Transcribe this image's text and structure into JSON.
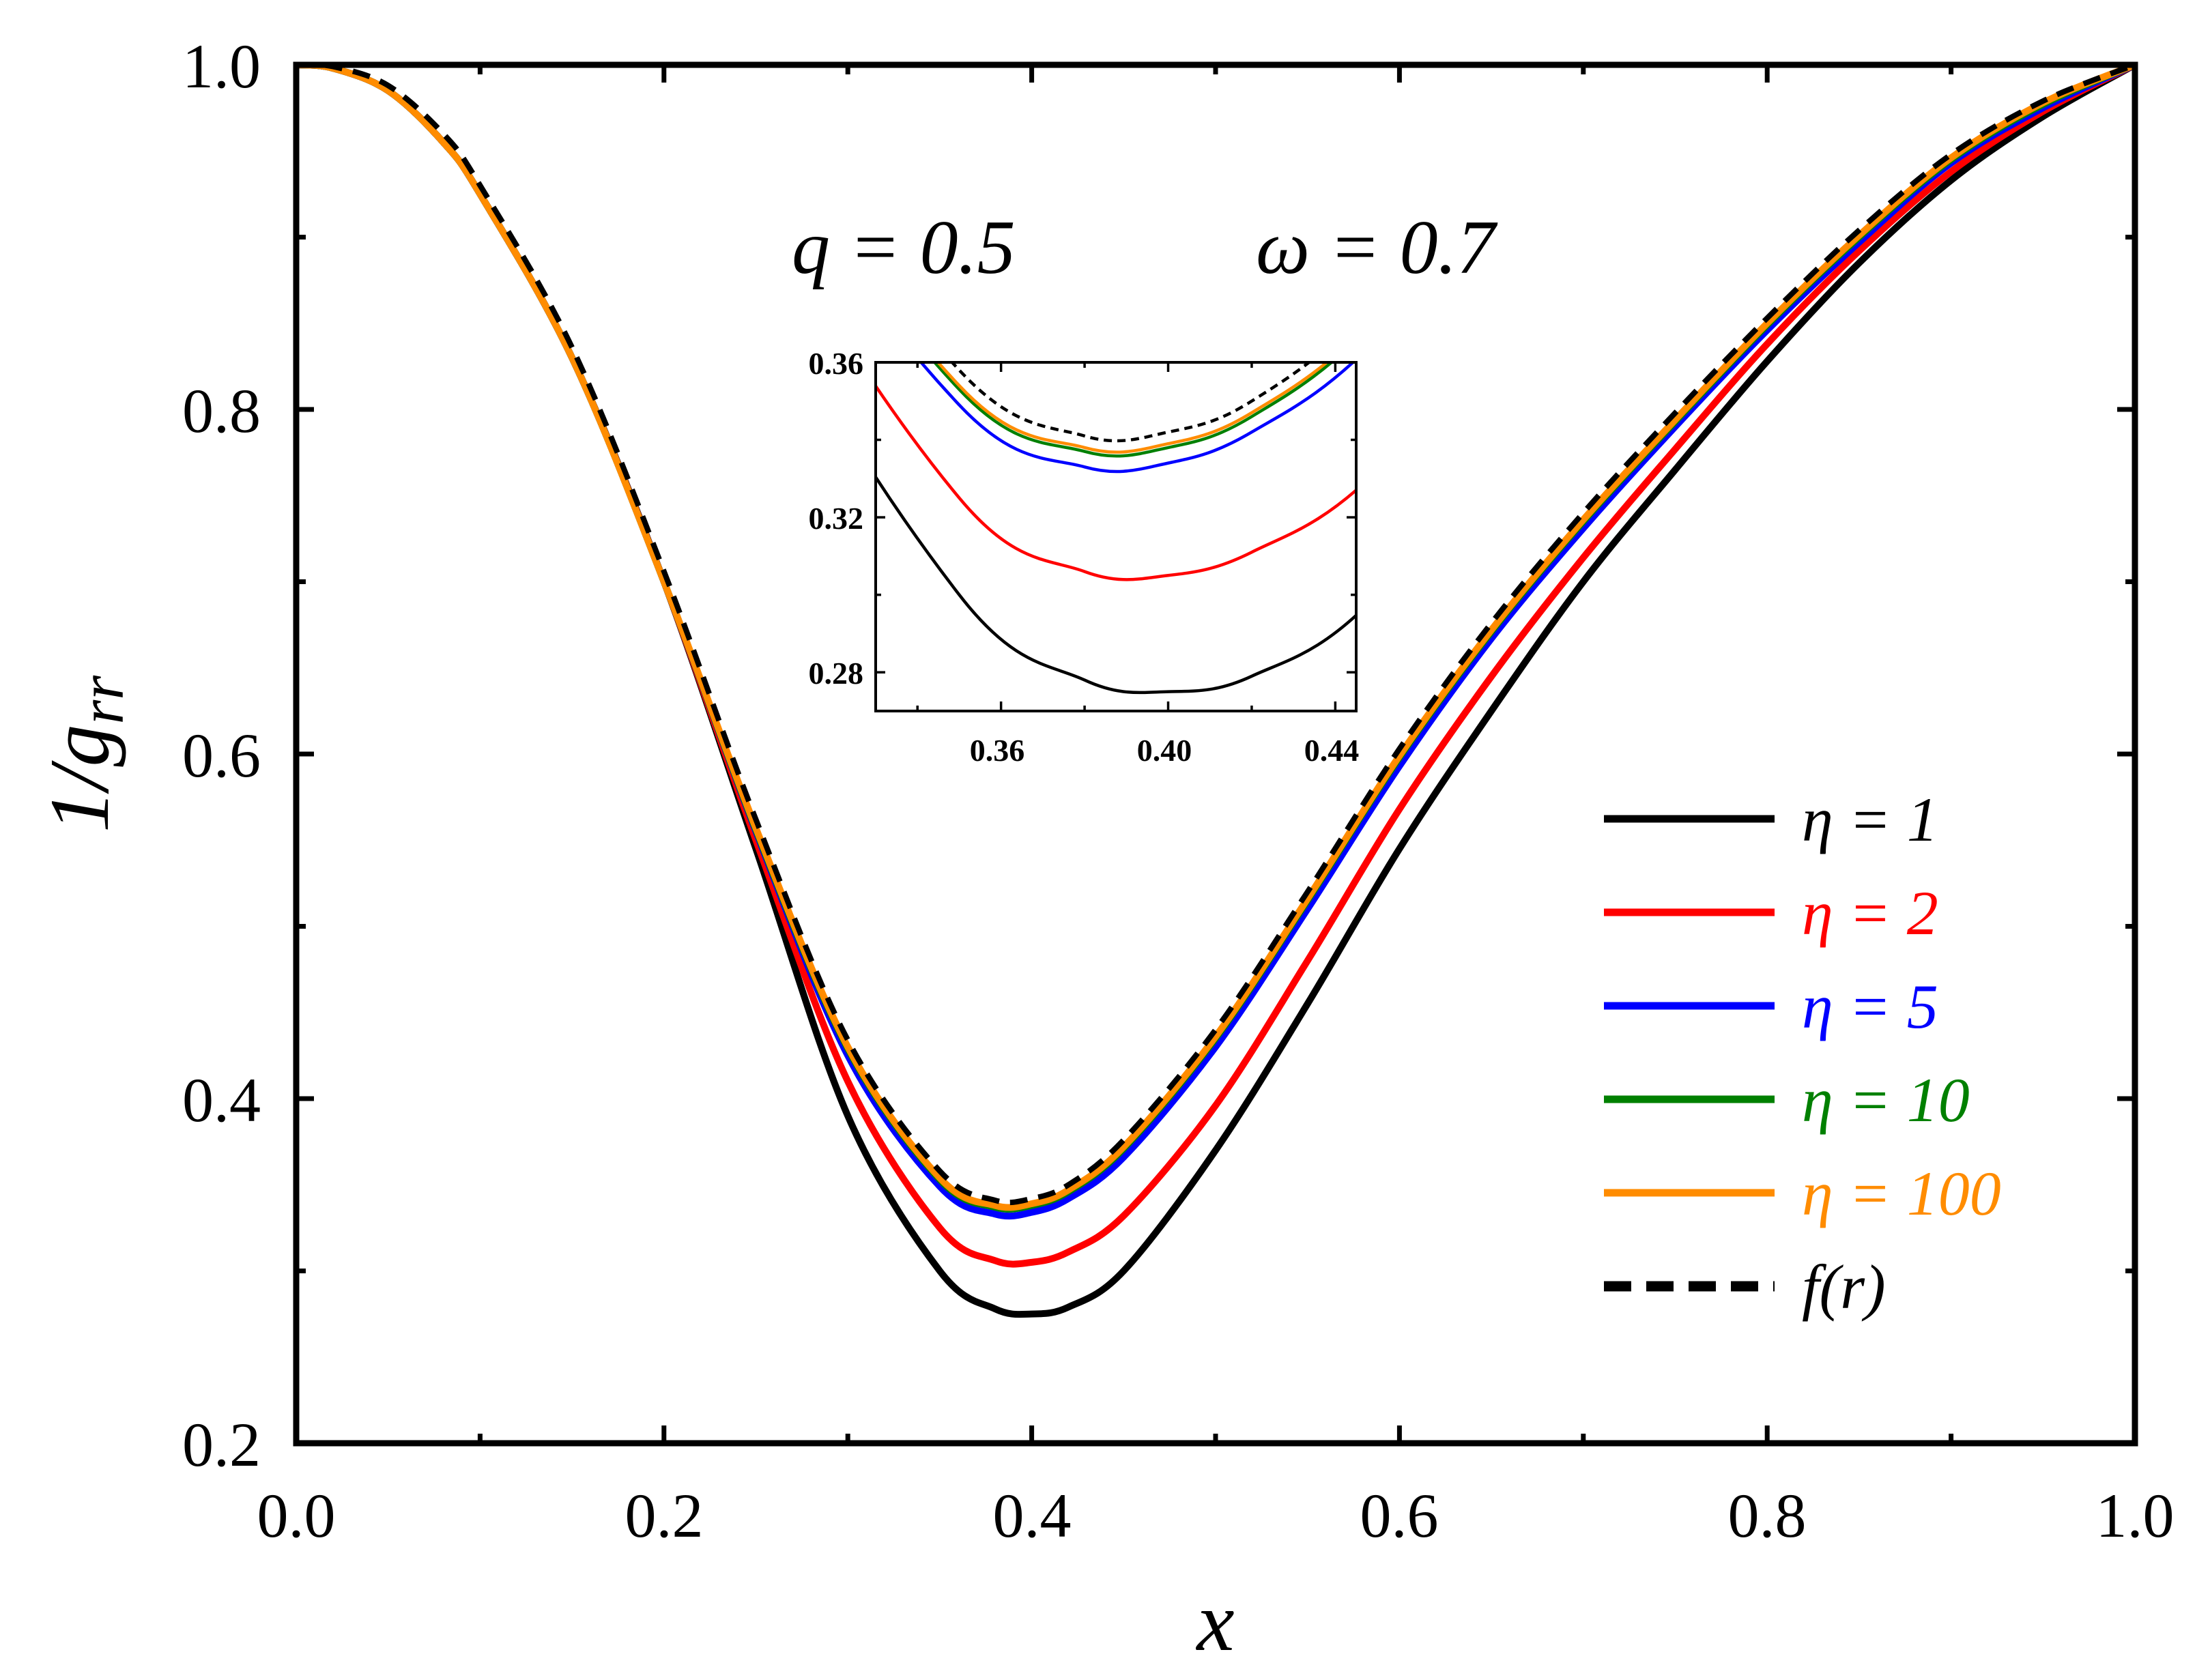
{
  "chart_data": {
    "type": "line",
    "title": "",
    "xlabel": "x",
    "ylabel_main": "1/g",
    "ylabel_sub": "rr",
    "xlim": [
      0.0,
      1.0
    ],
    "ylim": [
      0.2,
      1.0
    ],
    "x_ticks": [
      "0.0",
      "0.2",
      "0.4",
      "0.6",
      "0.8",
      "1.0"
    ],
    "y_ticks": [
      "0.2",
      "0.4",
      "0.6",
      "0.8",
      "1.0"
    ],
    "annotations": [
      {
        "id": "q",
        "text": "q = 0.5"
      },
      {
        "id": "omega",
        "text": "ω = 0.7"
      }
    ],
    "x": [
      0.0,
      0.02,
      0.05,
      0.08,
      0.1,
      0.15,
      0.2,
      0.25,
      0.3,
      0.35,
      0.38,
      0.4,
      0.42,
      0.45,
      0.5,
      0.55,
      0.6,
      0.65,
      0.7,
      0.75,
      0.8,
      0.85,
      0.9,
      0.95,
      1.0
    ],
    "series": [
      {
        "name": "η = 1",
        "color": "#000000",
        "dash": "solid",
        "values": [
          1.0,
          0.998,
          0.985,
          0.955,
          0.925,
          0.83,
          0.7,
          0.545,
          0.39,
          0.3,
          0.278,
          0.275,
          0.279,
          0.3,
          0.37,
          0.455,
          0.545,
          0.625,
          0.7,
          0.765,
          0.828,
          0.885,
          0.933,
          0.97,
          1.0
        ]
      },
      {
        "name": "η = 2",
        "color": "#ff0000",
        "dash": "solid",
        "values": [
          1.0,
          0.998,
          0.985,
          0.955,
          0.925,
          0.83,
          0.7,
          0.55,
          0.41,
          0.325,
          0.306,
          0.305,
          0.311,
          0.332,
          0.396,
          0.48,
          0.568,
          0.645,
          0.714,
          0.777,
          0.838,
          0.892,
          0.938,
          0.973,
          1.0
        ]
      },
      {
        "name": "η = 5",
        "color": "#0000ff",
        "dash": "solid",
        "values": [
          1.0,
          0.998,
          0.985,
          0.955,
          0.925,
          0.83,
          0.7,
          0.555,
          0.425,
          0.349,
          0.333,
          0.334,
          0.342,
          0.366,
          0.43,
          0.51,
          0.593,
          0.667,
          0.731,
          0.79,
          0.846,
          0.897,
          0.943,
          0.975,
          1.0
        ]
      },
      {
        "name": "η = 10",
        "color": "#008000",
        "dash": "solid",
        "values": [
          1.0,
          0.998,
          0.985,
          0.955,
          0.925,
          0.83,
          0.7,
          0.556,
          0.429,
          0.353,
          0.337,
          0.338,
          0.346,
          0.371,
          0.435,
          0.515,
          0.598,
          0.671,
          0.735,
          0.793,
          0.849,
          0.9,
          0.945,
          0.977,
          1.0
        ]
      },
      {
        "name": "η = 100",
        "color": "#ff8c00",
        "dash": "solid",
        "values": [
          1.0,
          0.998,
          0.985,
          0.955,
          0.925,
          0.83,
          0.7,
          0.557,
          0.43,
          0.354,
          0.338,
          0.339,
          0.347,
          0.372,
          0.436,
          0.516,
          0.599,
          0.672,
          0.736,
          0.794,
          0.85,
          0.901,
          0.946,
          0.978,
          1.0
        ]
      },
      {
        "name": "f(r)",
        "color": "#000000",
        "dash": "dashed",
        "values": [
          1.0,
          0.999,
          0.988,
          0.96,
          0.93,
          0.836,
          0.706,
          0.562,
          0.434,
          0.358,
          0.341,
          0.342,
          0.35,
          0.376,
          0.44,
          0.52,
          0.603,
          0.676,
          0.74,
          0.798,
          0.853,
          0.904,
          0.948,
          0.979,
          1.0
        ]
      }
    ],
    "inset": {
      "xlim": [
        0.33,
        0.445
      ],
      "ylim": [
        0.27,
        0.36
      ],
      "x_ticks": [
        "0.36",
        "0.40",
        "0.44"
      ],
      "y_ticks": [
        "0.28",
        "0.32",
        "0.36"
      ]
    }
  },
  "legend": {
    "labels": [
      "η = 1",
      "η = 2",
      "η = 5",
      "η = 10",
      "η = 100",
      "f(r)"
    ],
    "placement": "right"
  }
}
